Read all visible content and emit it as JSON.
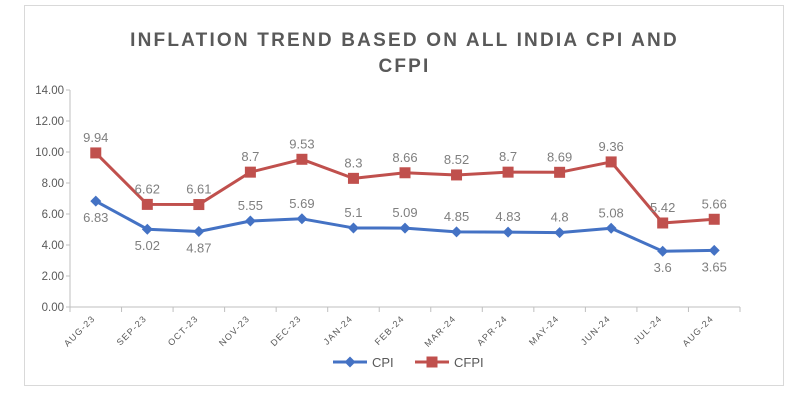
{
  "chart_data": {
    "type": "line",
    "title_lines": [
      "INFLATION TREND BASED ON ALL INDIA CPI AND",
      "CFPI"
    ],
    "title": "INFLATION TREND BASED ON ALL INDIA CPI AND CFPI",
    "xlabel": "",
    "ylabel": "",
    "categories": [
      "AUG-23",
      "SEP-23",
      "OCT-23",
      "NOV-23",
      "DEC-23",
      "JAN-24",
      "FEB-24",
      "MAR-24",
      "APR-24",
      "MAY-24",
      "JUN-24",
      "JUL-24",
      "AUG-24"
    ],
    "ylim": [
      0,
      14
    ],
    "yticks": [
      "0.00",
      "2.00",
      "4.00",
      "6.00",
      "8.00",
      "10.00",
      "12.00",
      "14.00"
    ],
    "grid": false,
    "legend_position": "bottom",
    "series": [
      {
        "name": "CPI",
        "color": "#4472c4",
        "marker": "diamond",
        "values": [
          6.83,
          5.02,
          4.87,
          5.55,
          5.69,
          5.1,
          5.09,
          4.85,
          4.83,
          4.8,
          5.08,
          3.6,
          3.65
        ],
        "labels": [
          "6.83",
          "5.02",
          "4.87",
          "5.55",
          "5.69",
          "5.1",
          "5.09",
          "4.85",
          "4.83",
          "4.8",
          "5.08",
          "3.6",
          "3.65"
        ]
      },
      {
        "name": "CFPI",
        "color": "#c0504d",
        "marker": "square",
        "values": [
          9.94,
          6.62,
          6.61,
          8.7,
          9.53,
          8.3,
          8.66,
          8.52,
          8.7,
          8.69,
          9.36,
          5.42,
          5.66
        ],
        "labels": [
          "9.94",
          "6.62",
          "6.61",
          "8.7",
          "9.53",
          "8.3",
          "8.66",
          "8.52",
          "8.7",
          "8.69",
          "9.36",
          "5.42",
          "5.66"
        ]
      }
    ]
  }
}
